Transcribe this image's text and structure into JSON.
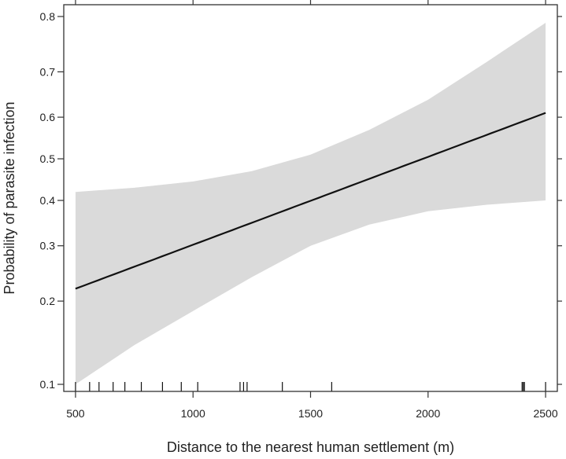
{
  "chart_data": {
    "type": "line",
    "title": "",
    "xlabel": "Distance to the nearest human settlement (m)",
    "ylabel": "Probability of parasite infection",
    "xlim": [
      450,
      2550
    ],
    "ylim": [
      0.1,
      0.8
    ],
    "y_scale": "logit",
    "grid": false,
    "x_ticks": [
      500,
      1000,
      1500,
      2000,
      2500
    ],
    "x_tick_labels": [
      "500",
      "1000",
      "1500",
      "2000",
      "2500"
    ],
    "y_ticks": [
      0.1,
      0.2,
      0.3,
      0.4,
      0.5,
      0.6,
      0.7,
      0.8
    ],
    "y_tick_labels": [
      "0.1",
      "0.2",
      "0.3",
      "0.4",
      "0.5",
      "0.6",
      "0.7",
      "0.8"
    ],
    "series": [
      {
        "x": [
          500,
          1000,
          1500,
          2000,
          2500
        ],
        "y": [
          0.22,
          0.3,
          0.4,
          0.51,
          0.61
        ],
        "color": "#111111"
      }
    ],
    "confidence_band": {
      "x": [
        500,
        750,
        1000,
        1250,
        1500,
        1750,
        2000,
        2250,
        2500
      ],
      "lower": [
        0.1,
        0.14,
        0.185,
        0.24,
        0.3,
        0.345,
        0.375,
        0.39,
        0.4
      ],
      "upper": [
        0.42,
        0.43,
        0.445,
        0.47,
        0.51,
        0.57,
        0.64,
        0.72,
        0.79
      ],
      "color": "#dadada"
    },
    "rug": [
      500,
      560,
      600,
      660,
      710,
      780,
      870,
      950,
      1020,
      1200,
      1215,
      1230,
      1380,
      1590,
      2400,
      2405,
      2410,
      2500
    ]
  }
}
